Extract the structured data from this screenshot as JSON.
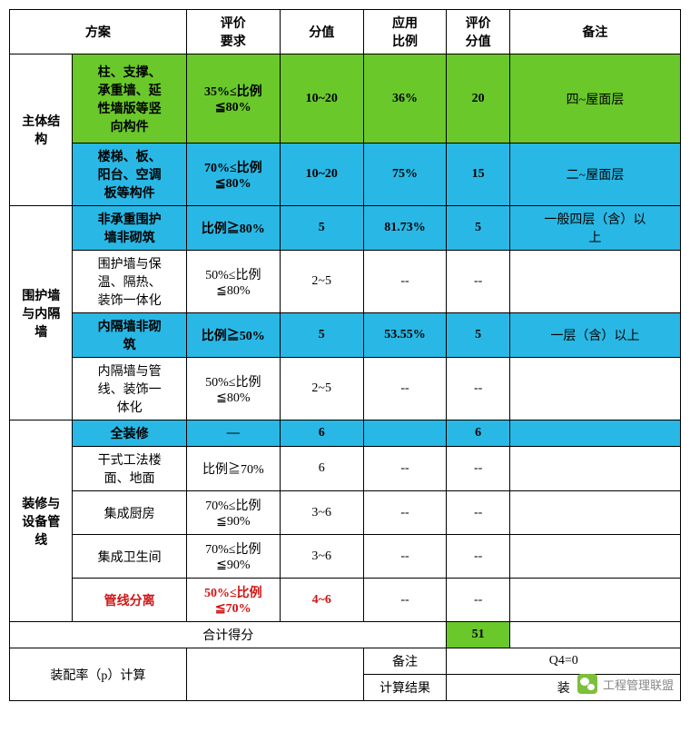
{
  "colors": {
    "green": "#6ac82b",
    "blue": "#29b8e5",
    "red": "#d01515",
    "border": "#000000",
    "bg": "#ffffff"
  },
  "header": {
    "plan": "方案",
    "req": "评价\n要求",
    "score": "分值",
    "ratio": "应用\n比例",
    "eval": "评价\n分值",
    "notes": "备注"
  },
  "cats": {
    "main": "主体结\n构",
    "wall": "围护墙\n与内隔\n墙",
    "deco": "装修与\n设备管\n线"
  },
  "rows": {
    "r1": {
      "item": "柱、支撑、\n承重墙、延\n性墙版等竖\n向构件",
      "req": "35%≤比例\n≦80%",
      "score": "10~20",
      "ratio": "36%",
      "eval": "20",
      "notes": "四~屋面层"
    },
    "r2": {
      "item": "楼梯、板、\n阳台、空调\n板等构件",
      "req": "70%≤比例\n≦80%",
      "score": "10~20",
      "ratio": "75%",
      "eval": "15",
      "notes": "二~屋面层"
    },
    "r3": {
      "item": "非承重围护\n墙非砌筑",
      "req": "比例≧80%",
      "score": "5",
      "ratio": "81.73%",
      "eval": "5",
      "notes": "一般四层（含）以\n上"
    },
    "r4": {
      "item": "围护墙与保\n温、隔热、\n装饰一体化",
      "req": "50%≤比例\n≦80%",
      "score": "2~5",
      "ratio": "--",
      "eval": "--",
      "notes": ""
    },
    "r5": {
      "item": "内隔墙非砌\n筑",
      "req": "比例≧50%",
      "score": "5",
      "ratio": "53.55%",
      "eval": "5",
      "notes": "一层（含）以上"
    },
    "r6": {
      "item": "内隔墙与管\n线、装饰一\n体化",
      "req": "50%≤比例\n≦80%",
      "score": "2~5",
      "ratio": "--",
      "eval": "--",
      "notes": ""
    },
    "r7": {
      "item": "全装修",
      "req": "—",
      "score": "6",
      "ratio": "",
      "eval": "6",
      "notes": ""
    },
    "r8": {
      "item": "干式工法楼\n面、地面",
      "req": "比例≧70%",
      "score": "6",
      "ratio": "--",
      "eval": "--",
      "notes": ""
    },
    "r9": {
      "item": "集成厨房",
      "req": "70%≤比例\n≦90%",
      "score": "3~6",
      "ratio": "--",
      "eval": "--",
      "notes": ""
    },
    "r10": {
      "item": "集成卫生间",
      "req": "70%≤比例\n≦90%",
      "score": "3~6",
      "ratio": "--",
      "eval": "--",
      "notes": ""
    },
    "r11": {
      "item": "管线分离",
      "req": "50%≤比例\n≦70%",
      "score": "4~6",
      "ratio": "--",
      "eval": "--",
      "notes": ""
    }
  },
  "totals": {
    "label": "合计得分",
    "value": "51"
  },
  "calc": {
    "label": "装配率（p）计算",
    "notes_label": "备注",
    "notes_value": "Q4=0",
    "result_label": "计算结果",
    "result_value": "装"
  },
  "brand": "工程管理联盟"
}
